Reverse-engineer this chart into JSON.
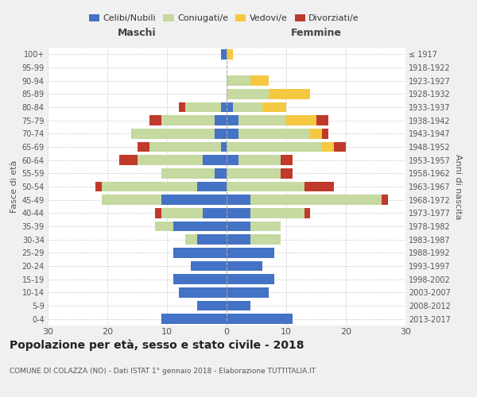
{
  "age_groups": [
    "0-4",
    "5-9",
    "10-14",
    "15-19",
    "20-24",
    "25-29",
    "30-34",
    "35-39",
    "40-44",
    "45-49",
    "50-54",
    "55-59",
    "60-64",
    "65-69",
    "70-74",
    "75-79",
    "80-84",
    "85-89",
    "90-94",
    "95-99",
    "100+"
  ],
  "birth_years": [
    "2013-2017",
    "2008-2012",
    "2003-2007",
    "1998-2002",
    "1993-1997",
    "1988-1992",
    "1983-1987",
    "1978-1982",
    "1973-1977",
    "1968-1972",
    "1963-1967",
    "1958-1962",
    "1953-1957",
    "1948-1952",
    "1943-1947",
    "1938-1942",
    "1933-1937",
    "1928-1932",
    "1923-1927",
    "1918-1922",
    "≤ 1917"
  ],
  "males": {
    "celibi": [
      11,
      5,
      8,
      9,
      6,
      9,
      5,
      9,
      4,
      11,
      5,
      2,
      4,
      1,
      2,
      2,
      1,
      0,
      0,
      0,
      1
    ],
    "coniugati": [
      0,
      0,
      0,
      0,
      0,
      0,
      2,
      3,
      7,
      10,
      16,
      9,
      11,
      12,
      14,
      9,
      6,
      0,
      0,
      0,
      0
    ],
    "vedovi": [
      0,
      0,
      0,
      0,
      0,
      0,
      0,
      0,
      0,
      0,
      0,
      0,
      0,
      0,
      0,
      0,
      0,
      0,
      0,
      0,
      0
    ],
    "divorziati": [
      0,
      0,
      0,
      0,
      0,
      0,
      0,
      0,
      1,
      0,
      1,
      0,
      3,
      2,
      0,
      2,
      1,
      0,
      0,
      0,
      0
    ]
  },
  "females": {
    "nubili": [
      11,
      4,
      7,
      8,
      6,
      8,
      4,
      4,
      4,
      4,
      0,
      0,
      2,
      0,
      2,
      2,
      1,
      0,
      0,
      0,
      0
    ],
    "coniugate": [
      0,
      0,
      0,
      0,
      0,
      0,
      5,
      5,
      9,
      22,
      13,
      9,
      7,
      16,
      12,
      8,
      5,
      7,
      4,
      0,
      0
    ],
    "vedove": [
      0,
      0,
      0,
      0,
      0,
      0,
      0,
      0,
      0,
      0,
      0,
      0,
      0,
      2,
      2,
      5,
      4,
      7,
      3,
      0,
      1
    ],
    "divorziate": [
      0,
      0,
      0,
      0,
      0,
      0,
      0,
      0,
      1,
      1,
      5,
      2,
      2,
      2,
      1,
      2,
      0,
      0,
      0,
      0,
      0
    ]
  },
  "colors": {
    "celibi": "#4472c4",
    "coniugati": "#c5d9a0",
    "vedovi": "#f5c842",
    "divorziati": "#c0392b"
  },
  "xlim": 30,
  "title": "Popolazione per età, sesso e stato civile - 2018",
  "subtitle": "COMUNE DI COLAZZA (NO) - Dati ISTAT 1° gennaio 2018 - Elaborazione TUTTITALIA.IT",
  "ylabel": "Fasce di età",
  "ylabel_right": "Anni di nascita",
  "xlabel_maschi": "Maschi",
  "xlabel_femmine": "Femmine",
  "bg_color": "#f0f0f0",
  "plot_bg": "#ffffff"
}
